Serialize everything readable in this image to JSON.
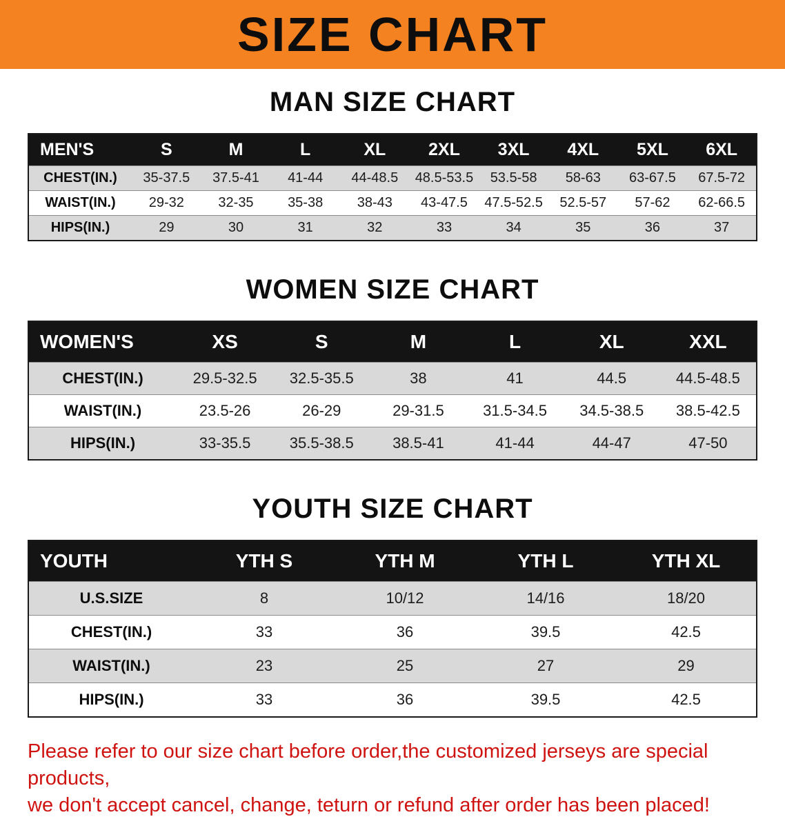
{
  "banner": {
    "title": "SIZE CHART"
  },
  "colors": {
    "banner_bg": "#f58220",
    "header_bg": "#141414",
    "row_alt_bg": "#d9d9d9",
    "disclaimer_color": "#cf1310"
  },
  "sections": [
    {
      "heading": "MAN SIZE CHART",
      "table": {
        "name": "mens-size-table",
        "header": [
          "MEN'S",
          "S",
          "M",
          "L",
          "XL",
          "2XL",
          "3XL",
          "4XL",
          "5XL",
          "6XL"
        ],
        "rows": [
          [
            "CHEST(IN.)",
            "35-37.5",
            "37.5-41",
            "41-44",
            "44-48.5",
            "48.5-53.5",
            "53.5-58",
            "58-63",
            "63-67.5",
            "67.5-72"
          ],
          [
            "WAIST(IN.)",
            "29-32",
            "32-35",
            "35-38",
            "38-43",
            "43-47.5",
            "47.5-52.5",
            "52.5-57",
            "57-62",
            "62-66.5"
          ],
          [
            "HIPS(IN.)",
            "29",
            "30",
            "31",
            "32",
            "33",
            "34",
            "35",
            "36",
            "37"
          ]
        ]
      }
    },
    {
      "heading": "WOMEN SIZE CHART",
      "table": {
        "name": "womens-size-table",
        "header": [
          "WOMEN'S",
          "XS",
          "S",
          "M",
          "L",
          "XL",
          "XXL"
        ],
        "rows": [
          [
            "CHEST(IN.)",
            "29.5-32.5",
            "32.5-35.5",
            "38",
            "41",
            "44.5",
            "44.5-48.5"
          ],
          [
            "WAIST(IN.)",
            "23.5-26",
            "26-29",
            "29-31.5",
            "31.5-34.5",
            "34.5-38.5",
            "38.5-42.5"
          ],
          [
            "HIPS(IN.)",
            "33-35.5",
            "35.5-38.5",
            "38.5-41",
            "41-44",
            "44-47",
            "47-50"
          ]
        ]
      }
    },
    {
      "heading": "YOUTH SIZE CHART",
      "table": {
        "name": "youth-size-table",
        "header": [
          "YOUTH",
          "YTH S",
          "YTH M",
          "YTH L",
          "YTH XL"
        ],
        "rows": [
          [
            "U.S.SIZE",
            "8",
            "10/12",
            "14/16",
            "18/20"
          ],
          [
            "CHEST(IN.)",
            "33",
            "36",
            "39.5",
            "42.5"
          ],
          [
            "WAIST(IN.)",
            "23",
            "25",
            "27",
            "29"
          ],
          [
            "HIPS(IN.)",
            "33",
            "36",
            "39.5",
            "42.5"
          ]
        ]
      }
    }
  ],
  "disclaimer": {
    "line1": "Please refer to our size chart before order,the customized jerseys are special products,",
    "line2": "we don't accept cancel, change, teturn or refund after order has been placed!"
  }
}
